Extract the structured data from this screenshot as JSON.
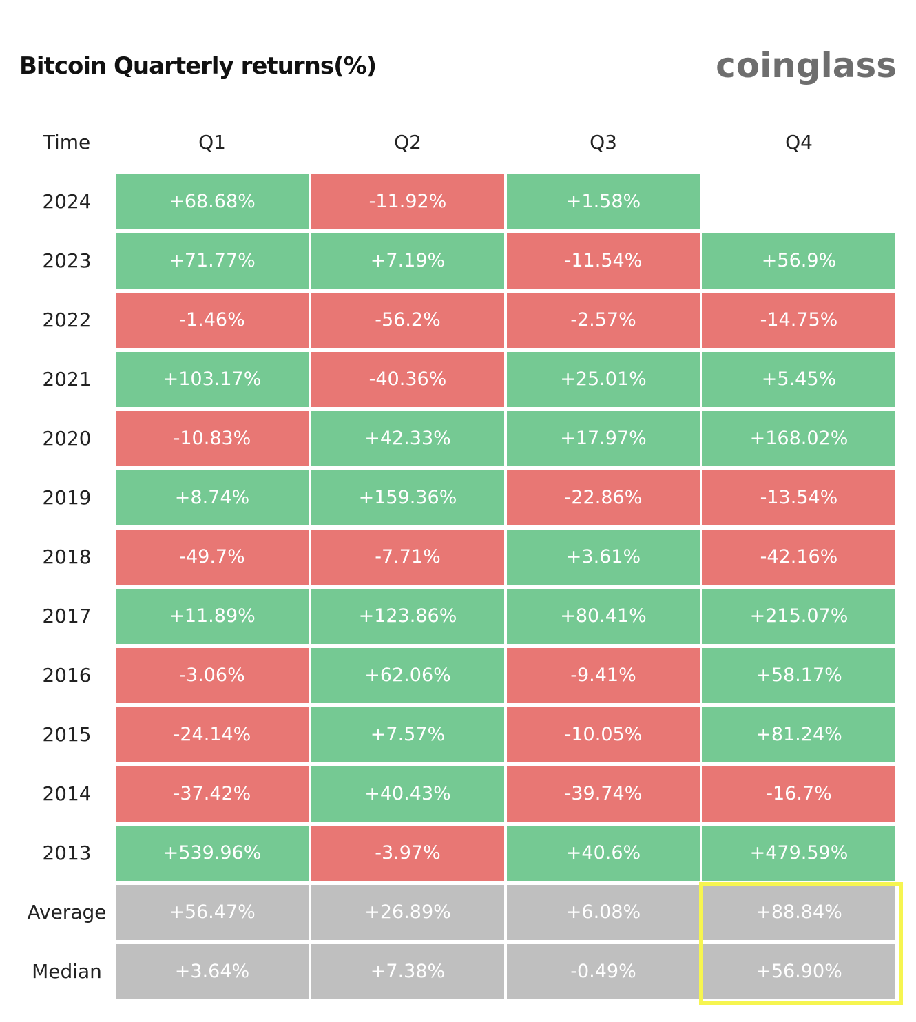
{
  "chart_data": {
    "type": "table",
    "title": "Bitcoin Quarterly returns(%)",
    "brand": "coinglass",
    "header": [
      "Time",
      "Q1",
      "Q2",
      "Q3",
      "Q4"
    ],
    "rows": [
      {
        "label": "2024",
        "values": [
          "+68.68%",
          "-11.92%",
          "+1.58%",
          ""
        ]
      },
      {
        "label": "2023",
        "values": [
          "+71.77%",
          "+7.19%",
          "-11.54%",
          "+56.9%"
        ]
      },
      {
        "label": "2022",
        "values": [
          "-1.46%",
          "-56.2%",
          "-2.57%",
          "-14.75%"
        ]
      },
      {
        "label": "2021",
        "values": [
          "+103.17%",
          "-40.36%",
          "+25.01%",
          "+5.45%"
        ]
      },
      {
        "label": "2020",
        "values": [
          "-10.83%",
          "+42.33%",
          "+17.97%",
          "+168.02%"
        ]
      },
      {
        "label": "2019",
        "values": [
          "+8.74%",
          "+159.36%",
          "-22.86%",
          "-13.54%"
        ]
      },
      {
        "label": "2018",
        "values": [
          "-49.7%",
          "-7.71%",
          "+3.61%",
          "-42.16%"
        ]
      },
      {
        "label": "2017",
        "values": [
          "+11.89%",
          "+123.86%",
          "+80.41%",
          "+215.07%"
        ]
      },
      {
        "label": "2016",
        "values": [
          "-3.06%",
          "+62.06%",
          "-9.41%",
          "+58.17%"
        ]
      },
      {
        "label": "2015",
        "values": [
          "-24.14%",
          "+7.57%",
          "-10.05%",
          "+81.24%"
        ]
      },
      {
        "label": "2014",
        "values": [
          "-37.42%",
          "+40.43%",
          "-39.74%",
          "-16.7%"
        ]
      },
      {
        "label": "2013",
        "values": [
          "+539.96%",
          "-3.97%",
          "+40.6%",
          "+479.59%"
        ]
      }
    ],
    "summary": [
      {
        "label": "Average",
        "values": [
          "+56.47%",
          "+26.89%",
          "+6.08%",
          "+88.84%"
        ]
      },
      {
        "label": "Median",
        "values": [
          "+3.64%",
          "+7.38%",
          "-0.49%",
          "+56.90%"
        ]
      }
    ],
    "colors": {
      "positive": "#75c993",
      "negative": "#e87774",
      "summary": "#bfbfbf",
      "highlight": "#f6f550"
    }
  }
}
